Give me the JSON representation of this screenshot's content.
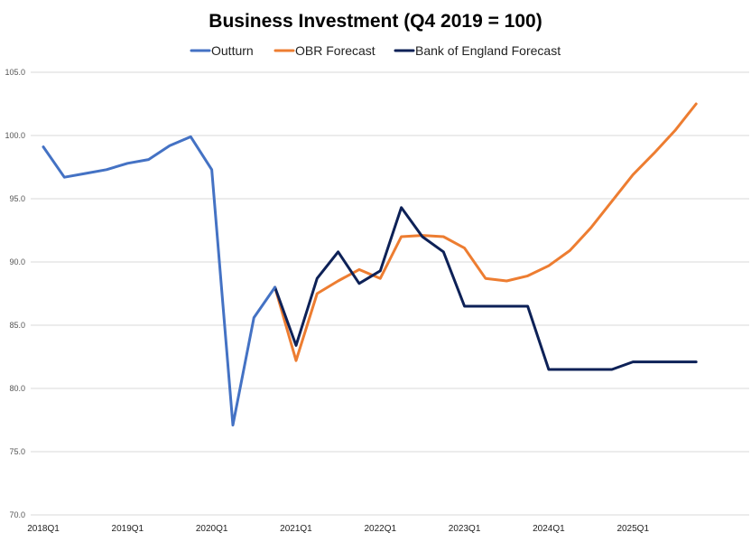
{
  "chart_data": {
    "type": "line",
    "title": "Business Investment (Q4 2019 = 100)",
    "xlabel": "",
    "ylabel": "",
    "ylim": [
      70,
      105
    ],
    "yticks": [
      70,
      75,
      80,
      85,
      90,
      95,
      100,
      105
    ],
    "ytick_labels": [
      "70.0",
      "75.0",
      "80.0",
      "85.0",
      "90.0",
      "95.0",
      "100.0",
      "105.0"
    ],
    "grid": true,
    "legend_position": "top",
    "x": [
      "2018Q1",
      "2018Q2",
      "2018Q3",
      "2018Q4",
      "2019Q1",
      "2019Q2",
      "2019Q3",
      "2019Q4",
      "2020Q1",
      "2020Q2",
      "2020Q3",
      "2020Q4",
      "2021Q1",
      "2021Q2",
      "2021Q3",
      "2021Q4",
      "2022Q1",
      "2022Q2",
      "2022Q3",
      "2022Q4",
      "2023Q1",
      "2023Q2",
      "2023Q3",
      "2023Q4",
      "2024Q1",
      "2024Q2",
      "2024Q3",
      "2024Q4",
      "2025Q1",
      "2025Q2",
      "2025Q3",
      "2025Q4"
    ],
    "xtick_labels": [
      "2018Q1",
      "2019Q1",
      "2020Q1",
      "2021Q1",
      "2022Q1",
      "2023Q1",
      "2024Q1",
      "2025Q1"
    ],
    "series": [
      {
        "name": "Outturn",
        "color": "#4472c4",
        "values": [
          99.1,
          96.7,
          97.0,
          97.3,
          97.8,
          98.1,
          99.2,
          99.9,
          97.3,
          77.1,
          85.6,
          88.0,
          null,
          null,
          null,
          null,
          null,
          null,
          null,
          null,
          null,
          null,
          null,
          null,
          null,
          null,
          null,
          null,
          null,
          null,
          null,
          null
        ]
      },
      {
        "name": "OBR Forecast",
        "color": "#ed7d31",
        "values": [
          null,
          null,
          null,
          null,
          null,
          null,
          null,
          null,
          null,
          null,
          null,
          88.0,
          82.2,
          87.5,
          88.5,
          89.4,
          88.7,
          92.0,
          92.1,
          92.0,
          91.1,
          88.7,
          88.5,
          88.9,
          89.7,
          90.9,
          92.7,
          94.8,
          96.9,
          98.6,
          100.4,
          102.5
        ]
      },
      {
        "name": "Bank of England Forecast",
        "color": "#0d2157",
        "values": [
          null,
          null,
          null,
          null,
          null,
          null,
          null,
          null,
          null,
          null,
          null,
          88.0,
          83.4,
          88.7,
          90.8,
          88.3,
          89.3,
          94.3,
          92.0,
          90.8,
          86.5,
          86.5,
          86.5,
          86.5,
          81.5,
          81.5,
          81.5,
          81.5,
          82.1,
          82.1,
          82.1,
          82.1
        ]
      }
    ]
  }
}
